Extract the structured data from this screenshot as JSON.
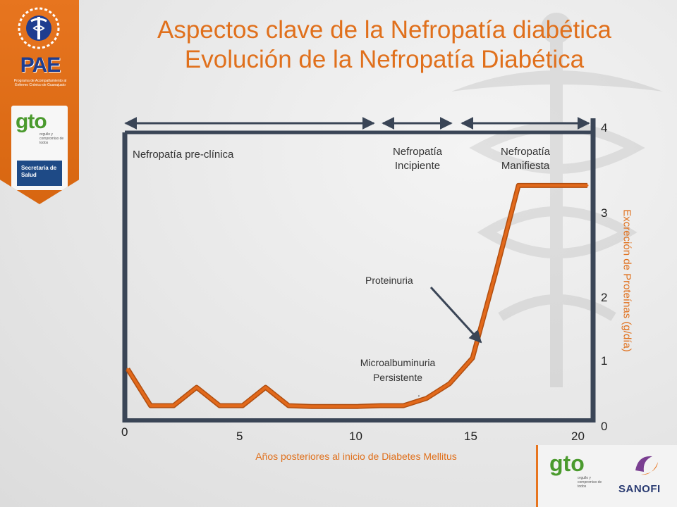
{
  "title": {
    "line1": "Aspectos clave de la Nefropatía diabética",
    "line2": "Evolución de la Nefropatía Diabética"
  },
  "logos": {
    "pae": "PAE",
    "pae_tagline": "Programa de Acompañamiento al Enfermo Crónico de Guanajuato",
    "gto": "gto",
    "gto_slogan": "orgullo y compromiso de todos",
    "salud": "Secretaría de Salud",
    "sanofi": "SANOFI"
  },
  "stages": [
    {
      "name": "Nefropatía pre-clínica"
    },
    {
      "name": "Nefropatía Incipiente"
    },
    {
      "name": "Nefropatía Manifiesta"
    }
  ],
  "annotations": {
    "proteinuria": "Proteinuria",
    "microalbuminuria": "Microalbuminuria Persistente",
    "dot": "."
  },
  "colors": {
    "accent": "#e0701c",
    "line": "#e2691b",
    "axis": "#3a4556"
  },
  "chart_data": {
    "type": "line",
    "xlabel": "Años posteriores al inicio de Diabetes Mellitus",
    "ylabel": "Excreción de Proteínas (g/día)",
    "xlim": [
      0,
      20
    ],
    "ylim": [
      0,
      4
    ],
    "x_ticks": [
      "0",
      "5",
      "10",
      "15",
      "20"
    ],
    "y_ticks": [
      "0",
      "1",
      "2",
      "3",
      "4"
    ],
    "grid": false,
    "series": [
      {
        "x": [
          0,
          1,
          2,
          3,
          4,
          5,
          6,
          7,
          8,
          9,
          10,
          11,
          12,
          13,
          14,
          15,
          16,
          17,
          18,
          19,
          20
        ],
        "y": [
          0.7,
          0.2,
          0.2,
          0.45,
          0.2,
          0.2,
          0.45,
          0.2,
          0.19,
          0.19,
          0.19,
          0.2,
          0.2,
          0.3,
          0.5,
          0.85,
          2.0,
          3.2,
          3.2,
          3.2,
          3.2
        ]
      }
    ]
  }
}
